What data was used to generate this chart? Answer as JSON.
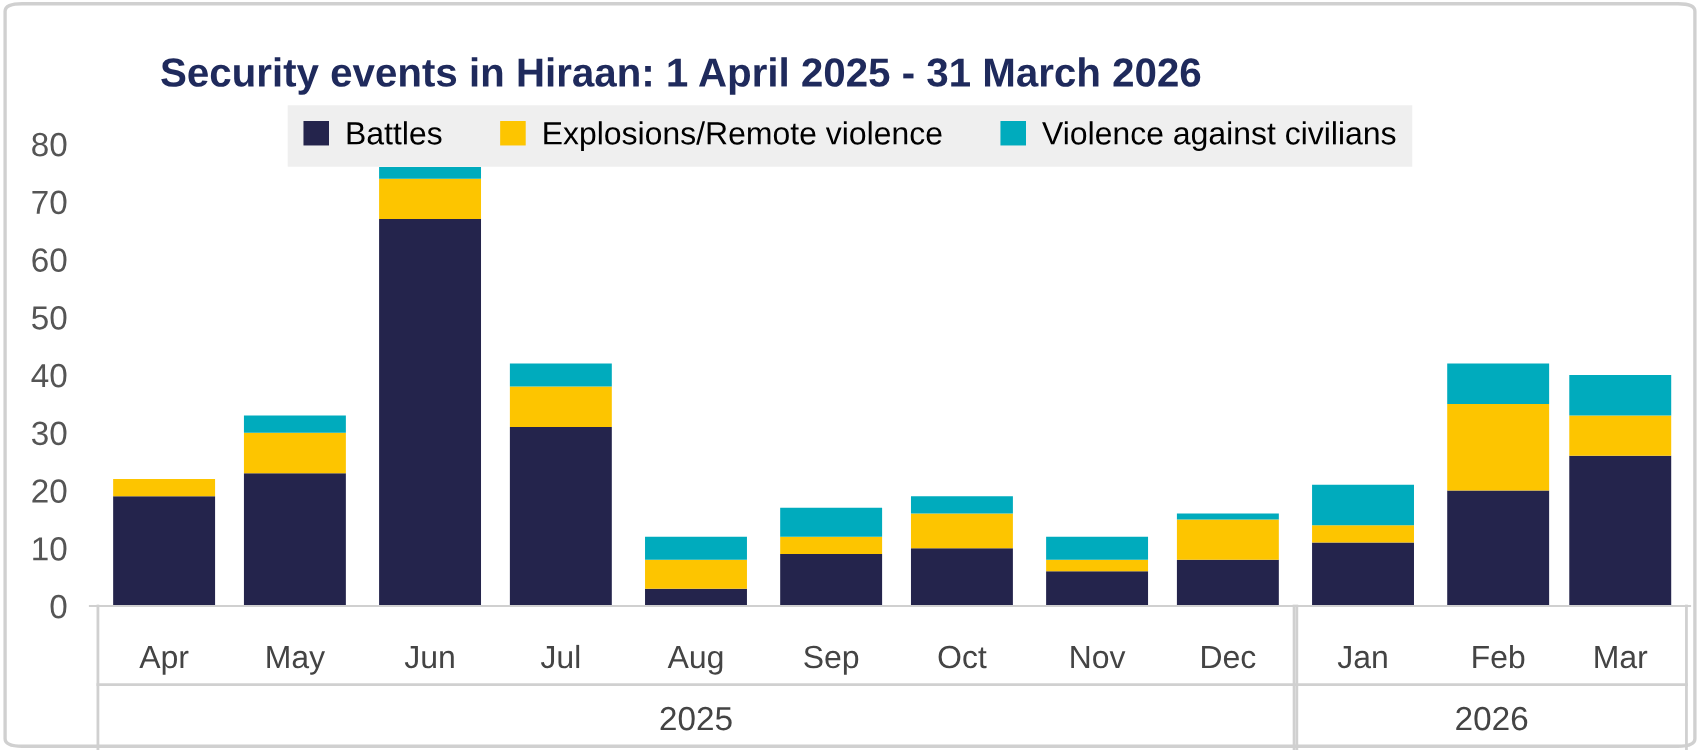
{
  "chart_data": {
    "type": "bar",
    "title": "Security events in Hiraan: 1 April 2025 - 31 March 2026",
    "x": [
      "2025-04",
      "2025-05",
      "2025-06",
      "2025-07",
      "2025-08",
      "2025-09",
      "2025-10",
      "2025-11",
      "2025-12",
      "2026-01",
      "2026-02",
      "2026-03"
    ],
    "xlim": [
      "2025-03-15",
      "2026-03-17"
    ],
    "xticks": [
      {
        "value": "2025-04",
        "label": "Apr"
      },
      {
        "value": "2025-05",
        "label": "May"
      },
      {
        "value": "2025-06",
        "label": "Jun"
      },
      {
        "value": "2025-07",
        "label": "Jul"
      },
      {
        "value": "2025-08",
        "label": "Aug"
      },
      {
        "value": "2025-09",
        "label": "Sep"
      },
      {
        "value": "2025-10",
        "label": "Oct"
      },
      {
        "value": "2025-11",
        "label": "Nov"
      },
      {
        "value": "2025-12",
        "label": "Dec"
      },
      {
        "value": "2026-01",
        "label": "Jan"
      },
      {
        "value": "2026-02",
        "label": "Feb"
      },
      {
        "value": "2026-03",
        "label": "Mar"
      }
    ],
    "series": [
      {
        "name": "Battles",
        "color": "#24244c",
        "values": [
          19,
          23,
          67,
          31,
          3,
          9,
          10,
          6,
          8,
          11,
          20,
          26
        ]
      },
      {
        "name": "Explosions/Remote violence",
        "color": "#fdc500",
        "values": [
          3,
          7,
          7,
          7,
          5,
          3,
          6,
          2,
          7,
          3,
          15,
          7
        ]
      },
      {
        "name": "Violence against civilians",
        "color": "#00abbd",
        "values": [
          0,
          3,
          2,
          4,
          4,
          5,
          3,
          4,
          1,
          7,
          7,
          7
        ]
      }
    ],
    "stacked": true,
    "ylim": [
      0,
      80
    ],
    "yticks": [
      0,
      10,
      20,
      30,
      40,
      50,
      60,
      70,
      80
    ],
    "grid": false,
    "legend": "top",
    "annotations": [
      "2025",
      "2026"
    ]
  }
}
